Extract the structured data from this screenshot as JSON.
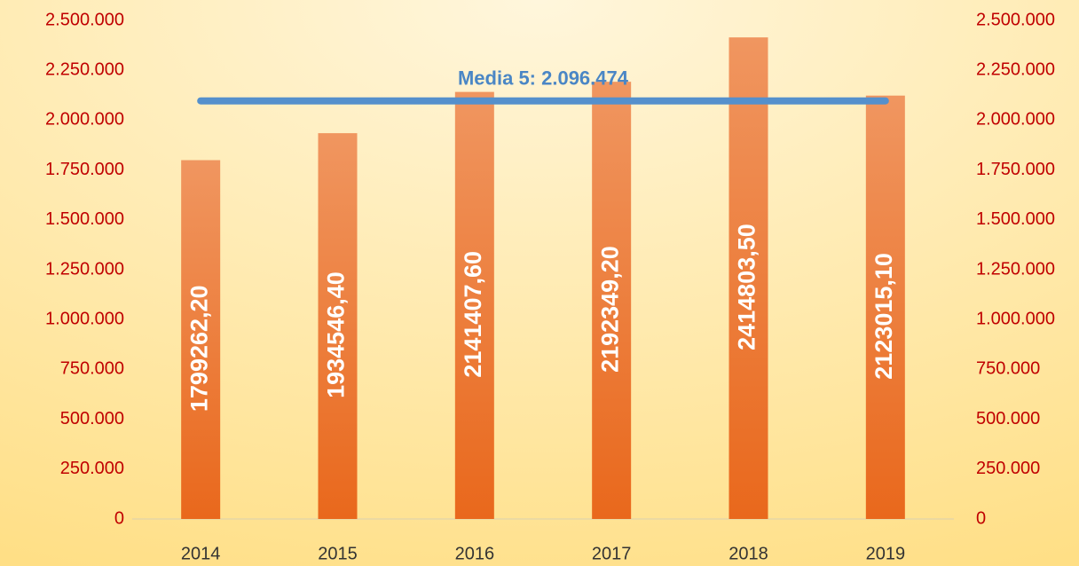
{
  "chart_data": {
    "type": "bar",
    "categories": [
      "2014",
      "2015",
      "2016",
      "2017",
      "2018",
      "2019"
    ],
    "values": [
      1799262.2,
      1934546.4,
      2141407.6,
      2192349.2,
      2414803.5,
      2123015.1
    ],
    "value_labels": [
      "1799262,20",
      "1934546,40",
      "2141407,60",
      "2192349,20",
      "2414803,50",
      "2123015,10"
    ],
    "color": "#ec7a2c",
    "ylim": [
      0,
      2500000
    ],
    "yticks": [
      0,
      {
        "value": 250000,
        "label": "250.000"
      },
      {
        "value": 500000,
        "label": "500.000"
      },
      {
        "value": 750000,
        "label": "750.000"
      },
      {
        "value": 1000000,
        "label": "1.000.000"
      },
      {
        "value": 1250000,
        "label": "1.250.000"
      },
      {
        "value": 1500000,
        "label": "1.500.000"
      },
      {
        "value": 1750000,
        "label": "1.750.000"
      },
      {
        "value": 2000000,
        "label": "2.000.000"
      },
      {
        "value": 2250000,
        "label": "2.250.000"
      },
      {
        "value": 2500000,
        "label": "2.500.000"
      }
    ],
    "y2lim": [
      0,
      2500000
    ],
    "y2ticks": [
      0,
      {
        "value": 250000,
        "label": "250.000"
      },
      {
        "value": 500000,
        "label": "500.000"
      },
      {
        "value": 750000,
        "label": "750.000"
      },
      {
        "value": 1000000,
        "label": "1.000.000"
      },
      {
        "value": 1250000,
        "label": "1.250.000"
      },
      {
        "value": 1500000,
        "label": "1.500.000"
      },
      {
        "value": 1750000,
        "label": "1.750.000"
      },
      {
        "value": 2000000,
        "label": "2.000.000"
      },
      {
        "value": 2250000,
        "label": "2.250.000"
      },
      {
        "value": 2500000,
        "label": "2.500.000"
      }
    ],
    "mean_line": {
      "value": 2096474,
      "label": "Media 5: 2.096.474",
      "color": "#5590cc"
    }
  }
}
